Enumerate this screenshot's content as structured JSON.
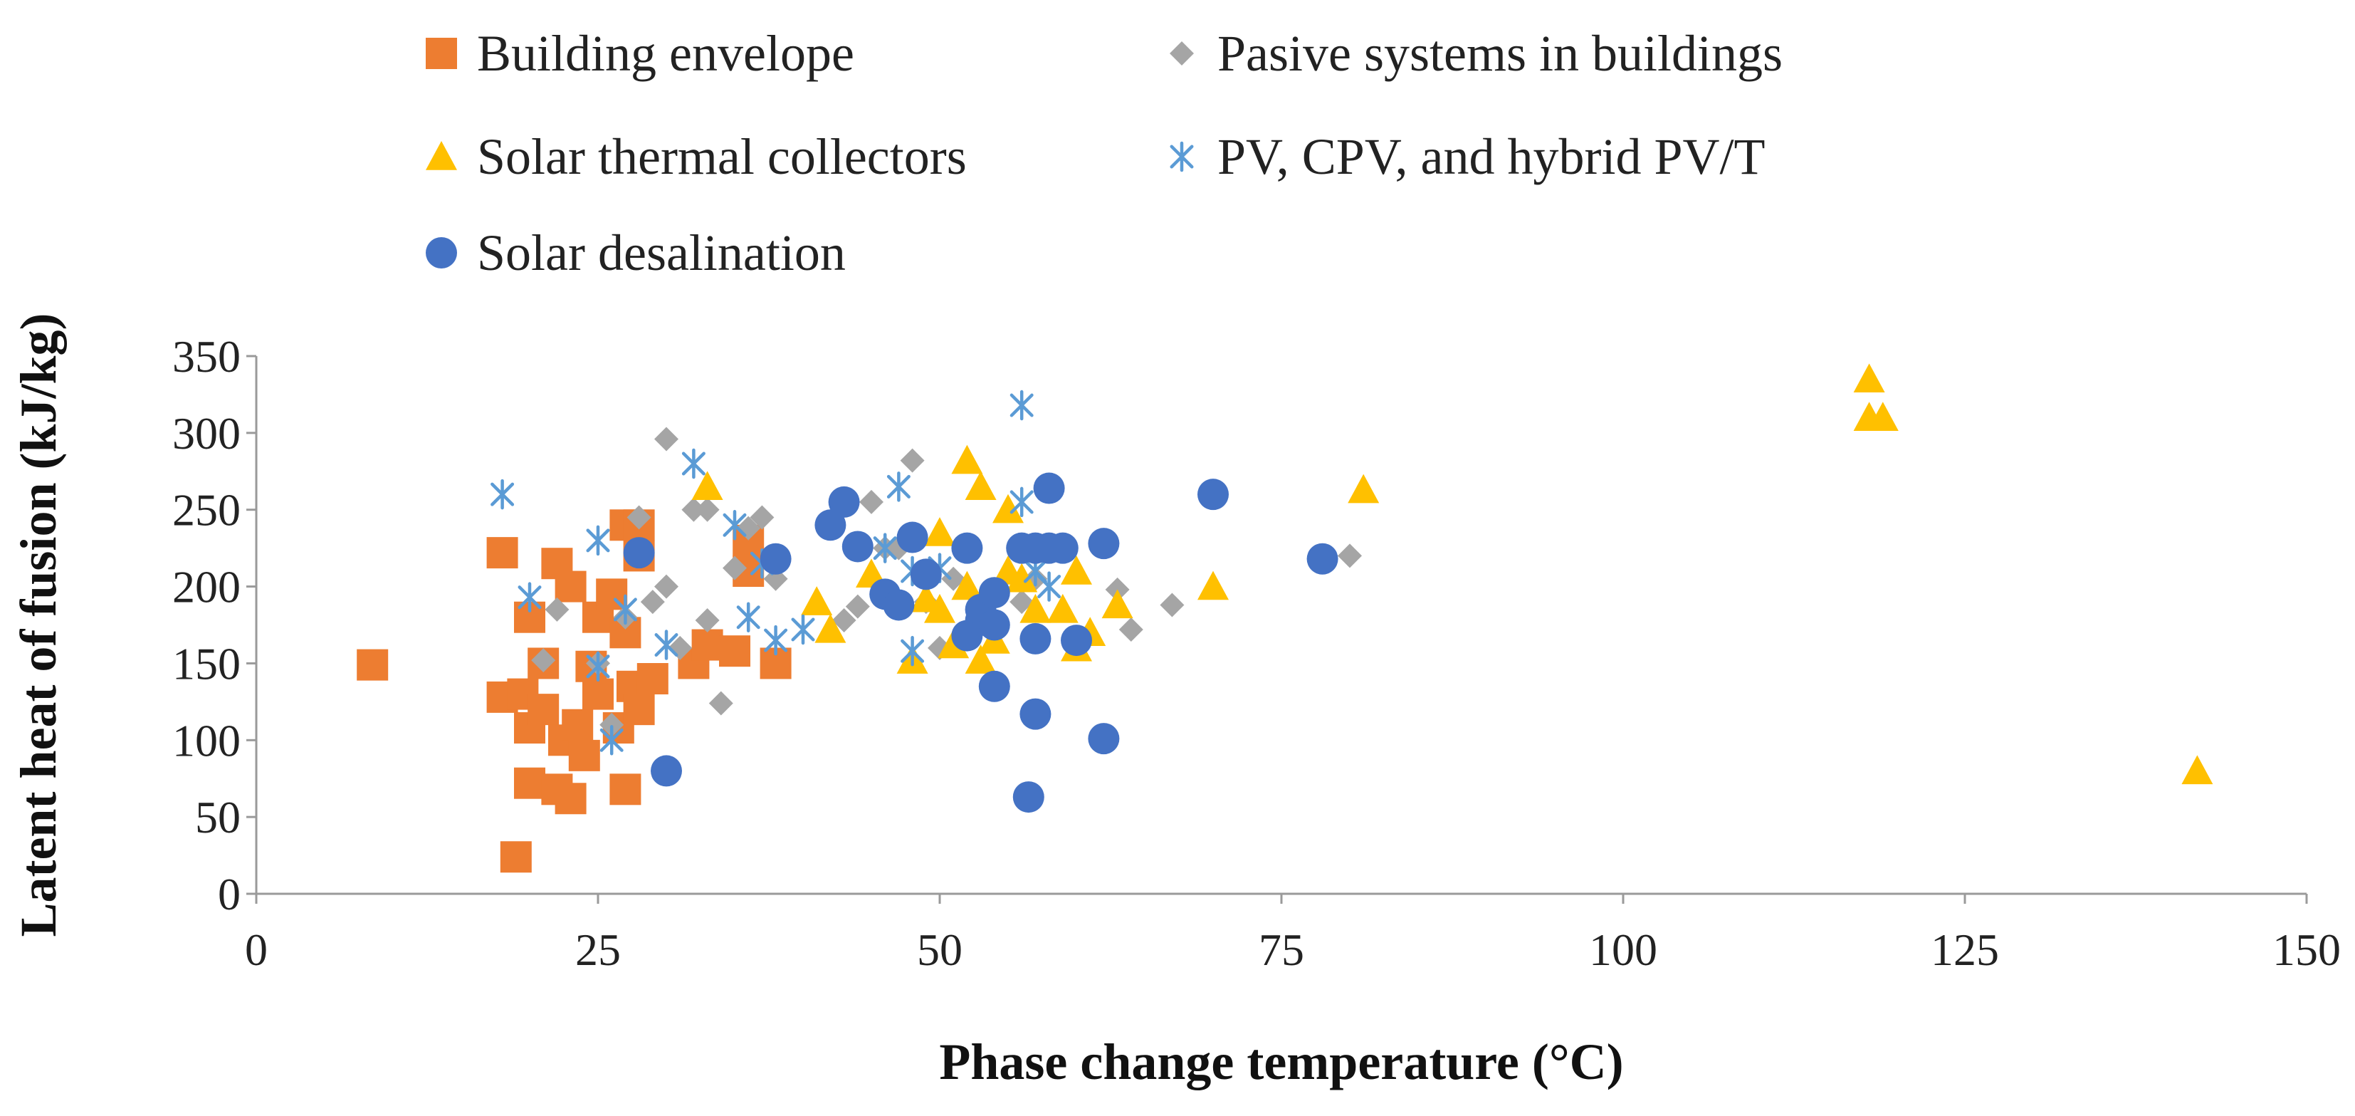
{
  "chart_data": {
    "type": "scatter",
    "title": "",
    "xlabel": "Phase change temperature (°C)",
    "ylabel": "Latent heat of fusion (kJ/kg)",
    "xlim": [
      0,
      150
    ],
    "ylim": [
      0,
      350
    ],
    "x_ticks": [
      0,
      25,
      50,
      75,
      100,
      125,
      150
    ],
    "y_ticks": [
      0,
      50,
      100,
      150,
      200,
      250,
      300,
      350
    ],
    "grid": false,
    "legend_position": "top",
    "series": [
      {
        "name": "Building envelope",
        "marker": "square",
        "color": "#ED7D31",
        "points": [
          [
            8.5,
            149
          ],
          [
            18,
            222
          ],
          [
            18,
            128
          ],
          [
            19,
            24
          ],
          [
            19.5,
            130
          ],
          [
            20,
            180
          ],
          [
            20,
            108
          ],
          [
            20,
            72
          ],
          [
            21,
            150
          ],
          [
            21,
            120
          ],
          [
            22,
            215
          ],
          [
            22,
            68
          ],
          [
            22.5,
            100
          ],
          [
            23,
            62
          ],
          [
            23,
            200
          ],
          [
            23.5,
            110
          ],
          [
            24,
            90
          ],
          [
            24.5,
            148
          ],
          [
            25,
            180
          ],
          [
            25,
            130
          ],
          [
            26,
            195
          ],
          [
            26.5,
            108
          ],
          [
            27,
            240
          ],
          [
            27,
            170
          ],
          [
            27,
            68
          ],
          [
            27.5,
            135
          ],
          [
            28,
            240
          ],
          [
            28,
            220
          ],
          [
            28,
            120
          ],
          [
            29,
            140
          ],
          [
            32,
            150
          ],
          [
            33,
            162
          ],
          [
            35,
            158
          ],
          [
            36,
            230
          ],
          [
            36,
            210
          ],
          [
            38,
            150
          ]
        ]
      },
      {
        "name": "Pasive systems in buildings",
        "marker": "diamond",
        "color": "#A5A5A5",
        "points": [
          [
            21,
            152
          ],
          [
            22,
            185
          ],
          [
            25,
            150
          ],
          [
            26,
            110
          ],
          [
            27,
            180
          ],
          [
            28,
            245
          ],
          [
            29,
            190
          ],
          [
            30,
            296
          ],
          [
            30,
            200
          ],
          [
            31,
            160
          ],
          [
            32,
            250
          ],
          [
            33,
            178
          ],
          [
            33,
            250
          ],
          [
            34,
            124
          ],
          [
            35,
            212
          ],
          [
            36,
            238
          ],
          [
            37,
            245
          ],
          [
            38,
            205
          ],
          [
            43,
            178
          ],
          [
            44,
            187
          ],
          [
            45,
            255
          ],
          [
            46,
            225
          ],
          [
            47,
            225
          ],
          [
            48,
            282
          ],
          [
            49,
            190
          ],
          [
            50,
            160
          ],
          [
            51,
            205
          ],
          [
            53,
            175
          ],
          [
            56,
            190
          ],
          [
            57,
            205
          ],
          [
            63,
            198
          ],
          [
            64,
            172
          ],
          [
            67,
            188
          ],
          [
            80,
            220
          ]
        ]
      },
      {
        "name": "Solar thermal collectors",
        "marker": "triangle",
        "color": "#FFC000",
        "points": [
          [
            33,
            265
          ],
          [
            41,
            190
          ],
          [
            42,
            172
          ],
          [
            45,
            208
          ],
          [
            48,
            152
          ],
          [
            49,
            192
          ],
          [
            50,
            235
          ],
          [
            50,
            185
          ],
          [
            51,
            162
          ],
          [
            52,
            282
          ],
          [
            52,
            200
          ],
          [
            53,
            152
          ],
          [
            53,
            265
          ],
          [
            54,
            165
          ],
          [
            55,
            250
          ],
          [
            55,
            210
          ],
          [
            56,
            205
          ],
          [
            57,
            185
          ],
          [
            58,
            225
          ],
          [
            59,
            185
          ],
          [
            60,
            210
          ],
          [
            60,
            160
          ],
          [
            61,
            170
          ],
          [
            63,
            188
          ],
          [
            70,
            200
          ],
          [
            81,
            263
          ],
          [
            118,
            335
          ],
          [
            118,
            310
          ],
          [
            119,
            310
          ],
          [
            142,
            80
          ]
        ]
      },
      {
        "name": "PV, CPV, and hybrid PV/T",
        "marker": "asterisk",
        "color": "#5B9BD5",
        "points": [
          [
            18,
            260
          ],
          [
            20,
            193
          ],
          [
            25,
            230
          ],
          [
            25,
            148
          ],
          [
            26,
            100
          ],
          [
            27,
            185
          ],
          [
            30,
            162
          ],
          [
            32,
            280
          ],
          [
            35,
            240
          ],
          [
            36,
            180
          ],
          [
            37,
            215
          ],
          [
            38,
            165
          ],
          [
            40,
            172
          ],
          [
            46,
            225
          ],
          [
            47,
            265
          ],
          [
            48,
            158
          ],
          [
            48,
            210
          ],
          [
            50,
            212
          ],
          [
            56,
            255
          ],
          [
            56,
            318
          ],
          [
            57,
            210
          ],
          [
            58,
            200
          ]
        ]
      },
      {
        "name": "Solar desalination",
        "marker": "circle",
        "color": "#4472C4",
        "points": [
          [
            28,
            222
          ],
          [
            30,
            80
          ],
          [
            38,
            218
          ],
          [
            42,
            240
          ],
          [
            43,
            255
          ],
          [
            44,
            226
          ],
          [
            46,
            195
          ],
          [
            47,
            188
          ],
          [
            48,
            232
          ],
          [
            49,
            208
          ],
          [
            52,
            225
          ],
          [
            52,
            168
          ],
          [
            53,
            178
          ],
          [
            53,
            185
          ],
          [
            54,
            196
          ],
          [
            54,
            135
          ],
          [
            54,
            175
          ],
          [
            56,
            225
          ],
          [
            57,
            225
          ],
          [
            57,
            166
          ],
          [
            57,
            117
          ],
          [
            56.5,
            63
          ],
          [
            58,
            264
          ],
          [
            58,
            225
          ],
          [
            59,
            225
          ],
          [
            60,
            165
          ],
          [
            62,
            228
          ],
          [
            62,
            101
          ],
          [
            70,
            260
          ],
          [
            78,
            218
          ]
        ]
      }
    ]
  }
}
